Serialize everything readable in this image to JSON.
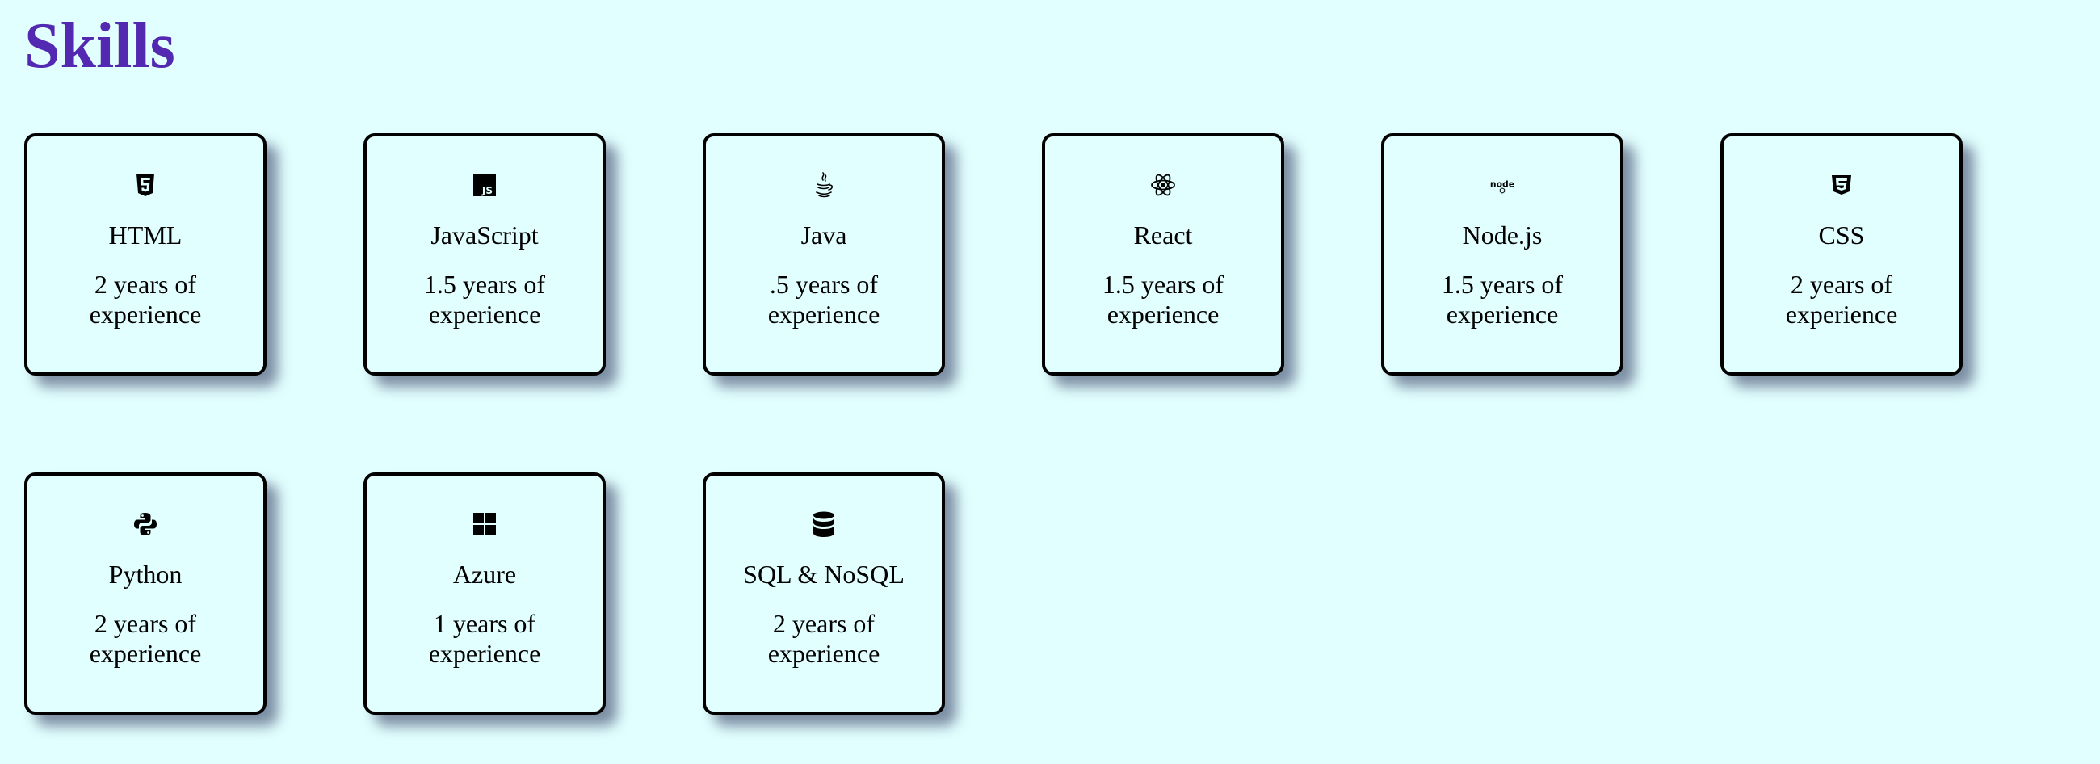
{
  "page": {
    "title": "Skills",
    "title_color": "#5229b0",
    "background": "#e2ffff"
  },
  "skills": [
    {
      "icon": "html5-icon",
      "name": "HTML",
      "experience": "2 years of experience"
    },
    {
      "icon": "javascript-icon",
      "name": "JavaScript",
      "experience": "1.5 years of experience"
    },
    {
      "icon": "java-icon",
      "name": "Java",
      "experience": ".5 years of experience"
    },
    {
      "icon": "react-icon",
      "name": "React",
      "experience": "1.5 years of experience"
    },
    {
      "icon": "nodejs-icon",
      "name": "Node.js",
      "experience": "1.5 years of experience"
    },
    {
      "icon": "css3-icon",
      "name": "CSS",
      "experience": "2 years of experience"
    },
    {
      "icon": "python-icon",
      "name": "Python",
      "experience": "2 years of experience"
    },
    {
      "icon": "azure-icon",
      "name": "Azure",
      "experience": "1 years of experience"
    },
    {
      "icon": "database-icon",
      "name": "SQL & NoSQL",
      "experience": "2 years of experience"
    }
  ]
}
